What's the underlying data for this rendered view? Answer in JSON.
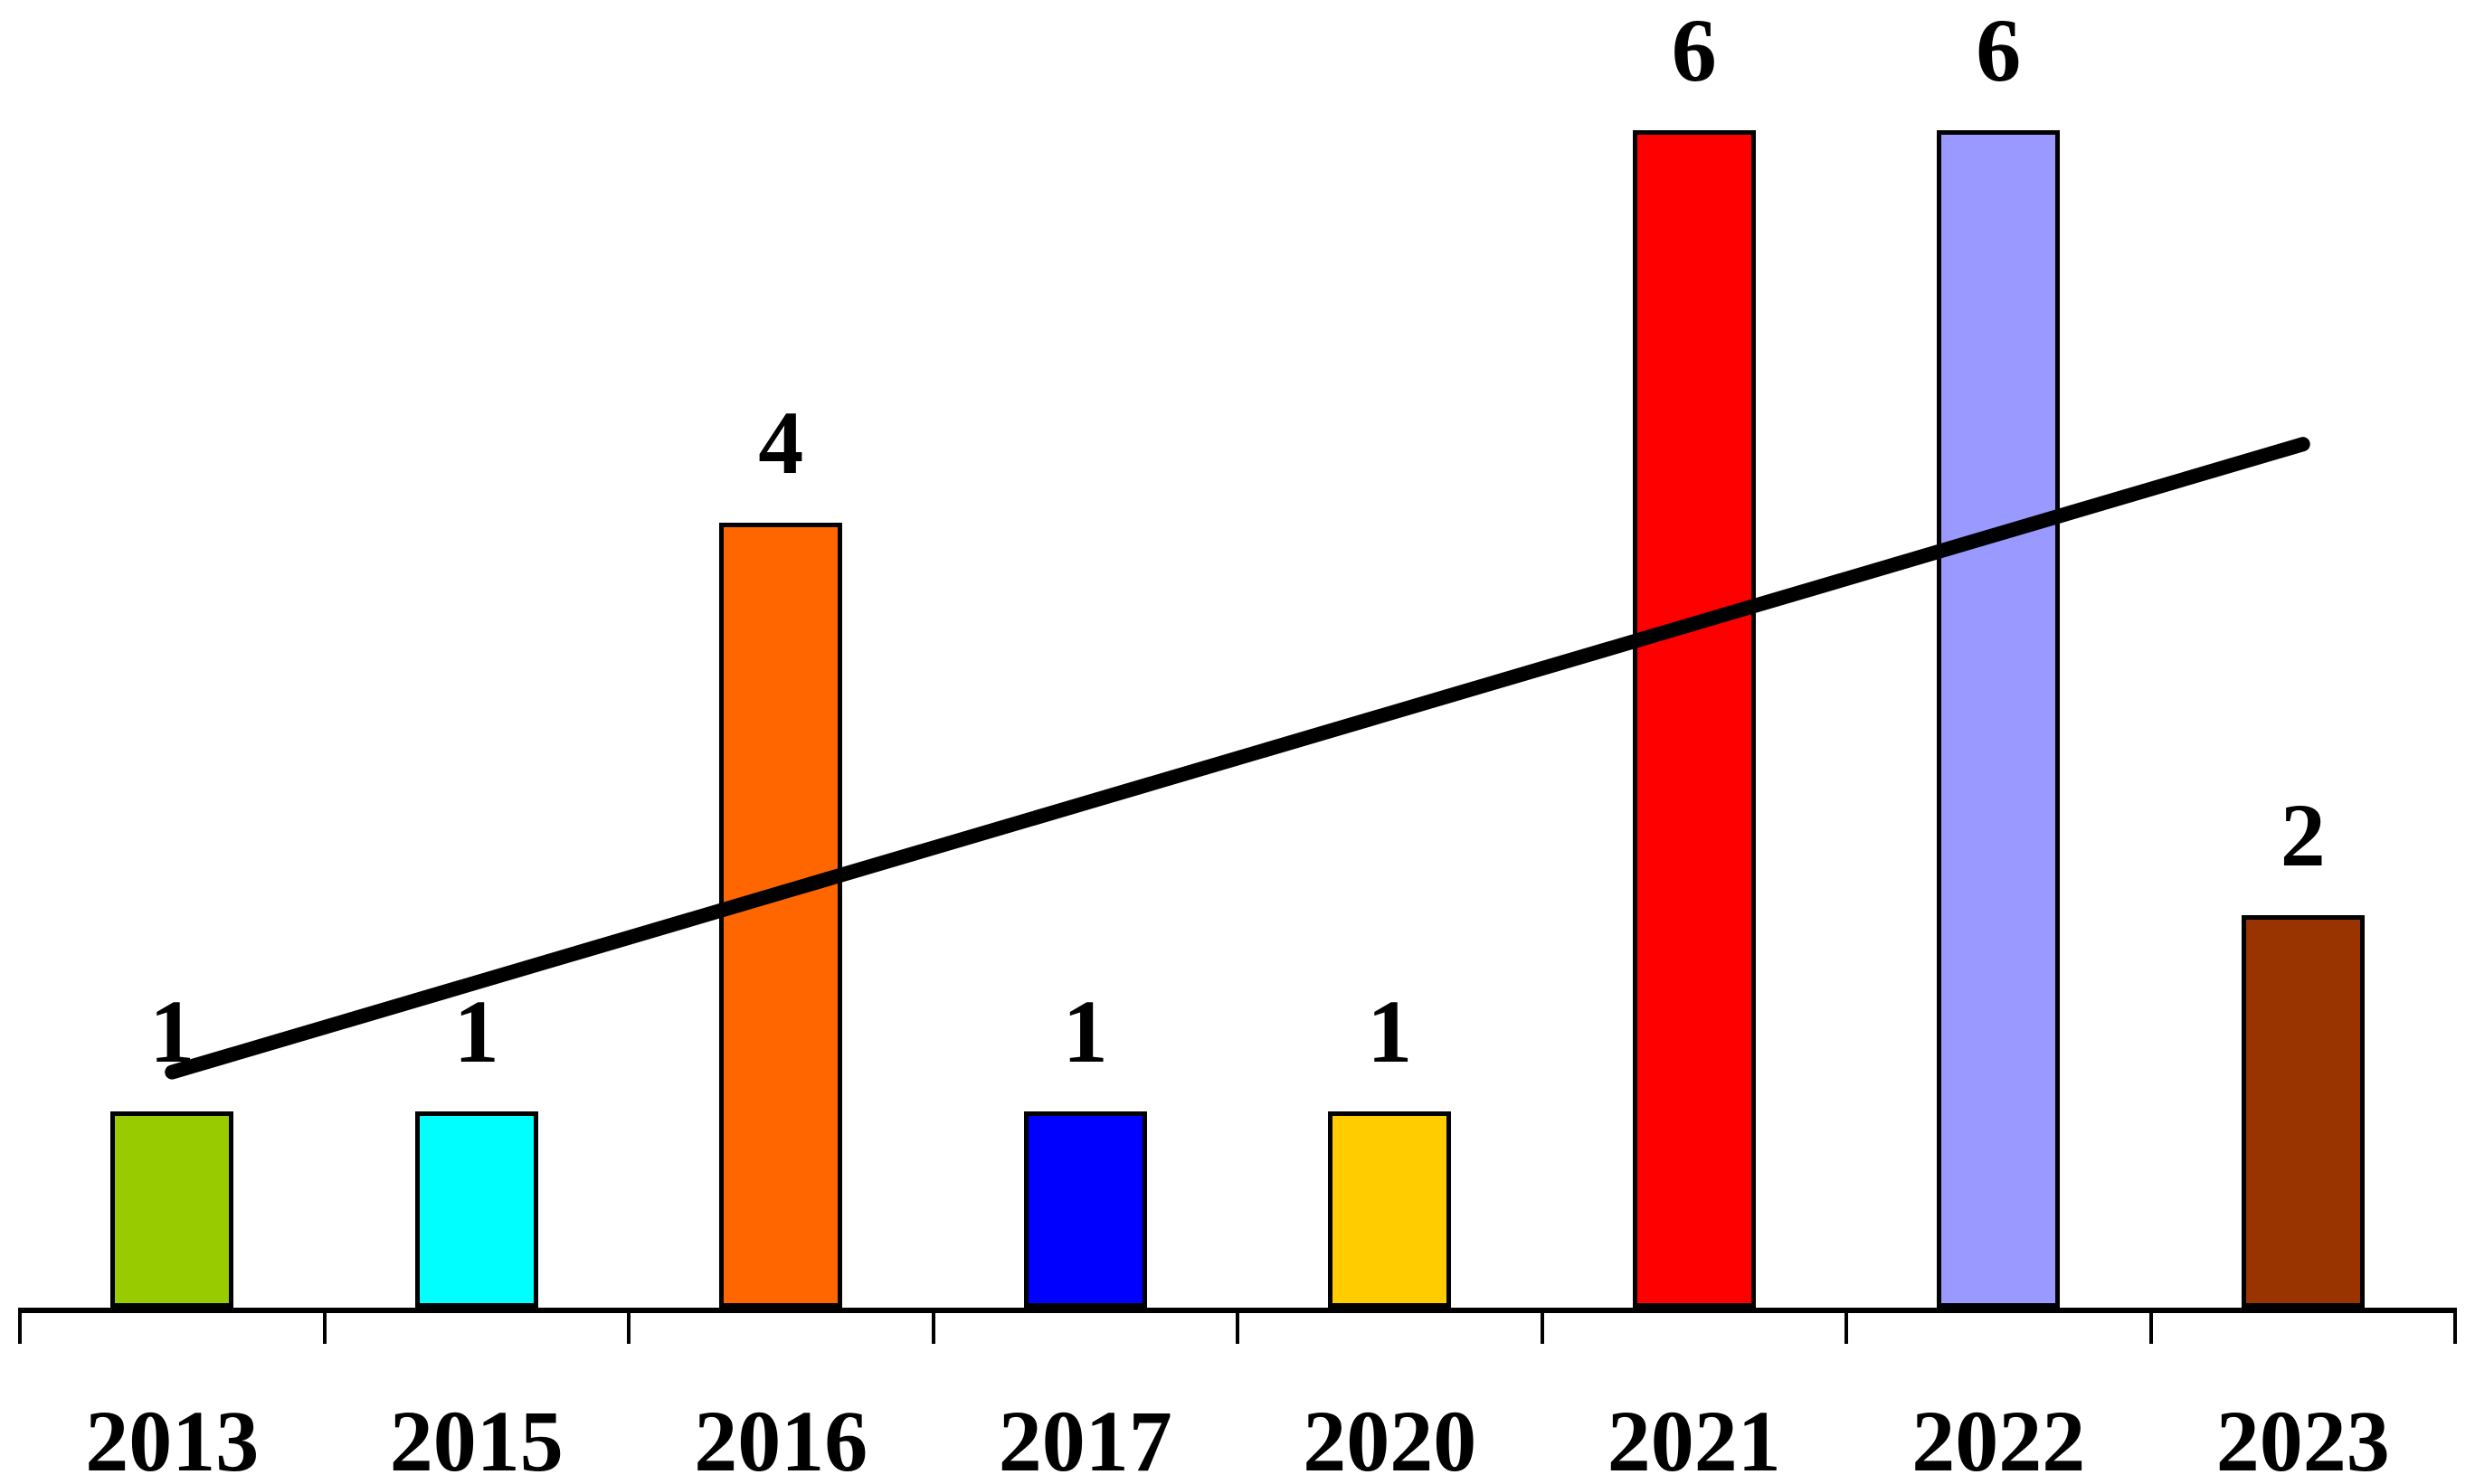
{
  "chart_data": {
    "type": "bar",
    "title": "",
    "xlabel": "",
    "ylabel": "",
    "categories": [
      "2013",
      "2015",
      "2016",
      "2017",
      "2020",
      "2021",
      "2022",
      "2023"
    ],
    "values": [
      1,
      1,
      4,
      1,
      1,
      6,
      6,
      2
    ],
    "bar_colors": [
      "#99CC00",
      "#00FFFF",
      "#FF6600",
      "#0000FF",
      "#FFCC00",
      "#FF0000",
      "#9999FF",
      "#993300"
    ],
    "bar_border_color": "#000000",
    "label_color": "#000000",
    "axis_color": "#000000",
    "background_color": "#FFFFFF",
    "ylim": [
      0,
      6.7
    ],
    "grid": false,
    "legend": false,
    "value_labels_shown": true,
    "trendline": {
      "type": "linear",
      "color": "#000000",
      "value_at_first_category": 1.2,
      "value_at_last_category": 4.4
    }
  }
}
